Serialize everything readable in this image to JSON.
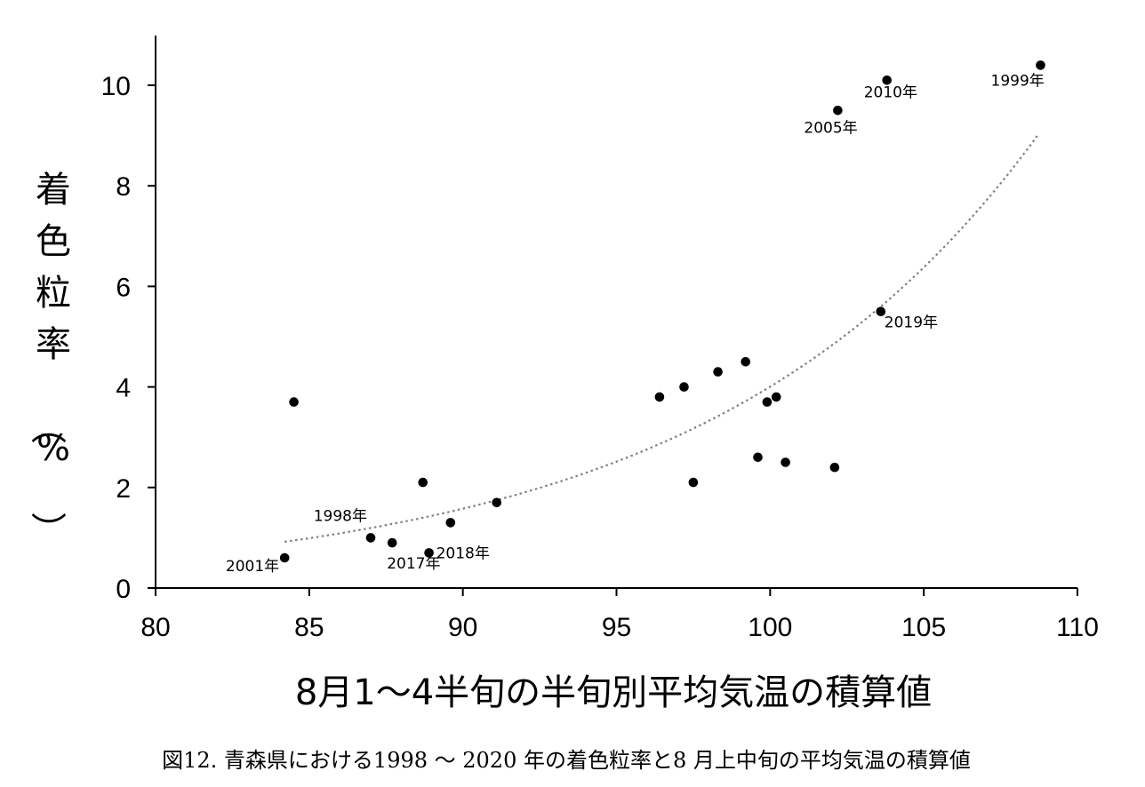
{
  "chart_data": {
    "type": "scatter",
    "xlabel": "8月1～4半旬の半旬別平均気温の積算値",
    "ylabel": "着色粒率（%）",
    "caption": "図12. 青森県における1998 ～ 2020 年の着色粒率と8 月上中旬の平均気温の積算値",
    "xlim": [
      80,
      110
    ],
    "ylim": [
      0,
      11
    ],
    "x_ticks": [
      80,
      85,
      90,
      95,
      100,
      105,
      110
    ],
    "y_ticks": [
      0,
      2,
      4,
      6,
      8,
      10
    ],
    "grid": false,
    "legend": "none",
    "colors": {
      "points": "#000000",
      "trendline": "#808080",
      "axis": "#000000"
    },
    "points": [
      {
        "x": 84.2,
        "y": 0.6,
        "label": "2001年"
      },
      {
        "x": 84.5,
        "y": 3.7
      },
      {
        "x": 87.0,
        "y": 1.0,
        "label": "1998年"
      },
      {
        "x": 87.7,
        "y": 0.9,
        "label": "2017年"
      },
      {
        "x": 88.7,
        "y": 2.1
      },
      {
        "x": 88.9,
        "y": 0.7,
        "label": "2018年"
      },
      {
        "x": 89.6,
        "y": 1.3
      },
      {
        "x": 91.1,
        "y": 1.7
      },
      {
        "x": 96.4,
        "y": 3.8
      },
      {
        "x": 97.2,
        "y": 4.0
      },
      {
        "x": 97.5,
        "y": 2.1
      },
      {
        "x": 98.3,
        "y": 4.3
      },
      {
        "x": 99.2,
        "y": 4.5
      },
      {
        "x": 99.6,
        "y": 2.6
      },
      {
        "x": 99.9,
        "y": 3.7
      },
      {
        "x": 100.2,
        "y": 3.8
      },
      {
        "x": 100.5,
        "y": 2.5
      },
      {
        "x": 102.1,
        "y": 2.4
      },
      {
        "x": 102.2,
        "y": 9.5,
        "label": "2005年"
      },
      {
        "x": 103.6,
        "y": 5.5,
        "label": "2019年"
      },
      {
        "x": 103.8,
        "y": 10.1,
        "label": "2010年"
      },
      {
        "x": 108.8,
        "y": 10.4,
        "label": "1999年"
      }
    ],
    "trendline": {
      "type": "exponential",
      "x_range": [
        84.2,
        108.7
      ],
      "y_start": 0.92,
      "y_end": 9.0
    }
  }
}
